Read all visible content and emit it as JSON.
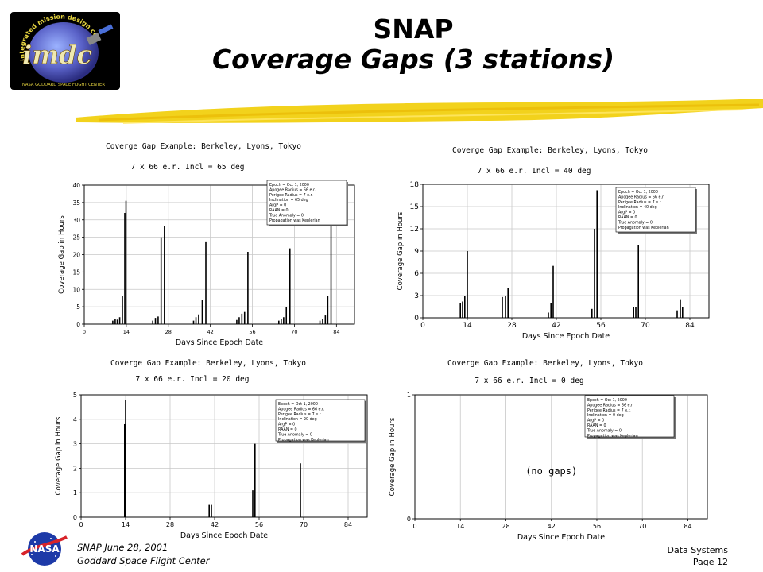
{
  "header": {
    "title_line1": "SNAP",
    "title_line2": "Coverage Gaps (3 stations)"
  },
  "logo": {
    "text": "imdc",
    "ring_text": "integrated mission design center",
    "bottom_text": "NASA GODDARD SPACE FLIGHT CENTER"
  },
  "footer": {
    "left_line1": "SNAP June 28, 2001",
    "left_line2": "Goddard Space Flight Center",
    "right_line1": "Data Systems",
    "right_line2": "Page 12"
  },
  "nasa_logo": {
    "text": "NASA"
  },
  "colors": {
    "accent": "#f2d21c",
    "bars": "#000000",
    "grid": "#c8c8c8"
  },
  "chart_data": [
    {
      "type": "bar",
      "title": "Coverge Gap Example:  Berkeley, Lyons, Tokyo",
      "subtitle": "7 x 66 e.r.        Incl = 65 deg",
      "xlabel": "Days Since Epoch Date",
      "ylabel": "Coverage Gap in Hours",
      "xlim": [
        0,
        90
      ],
      "ylim": [
        0,
        40
      ],
      "xticks": [
        "0",
        "14",
        "28",
        "42",
        "56",
        "70",
        "84"
      ],
      "yticks": [
        "0",
        "5",
        "10",
        "15",
        "20",
        "25",
        "30",
        "35",
        "40"
      ],
      "legend_position": "top-right",
      "legend": [
        "Epoch = Oct 1, 2000",
        "Apogee Radius = 66 e.r.",
        "Perigee Radius = 7 e.r.",
        "Inclination = 65 deg",
        "ArgP = 0",
        "RAAN = 0",
        "True Anomaly = 0",
        "Propagation was Keplerian"
      ],
      "x": [
        9.5,
        10.3,
        11,
        11.8,
        12.7,
        13.5,
        13.9,
        22.8,
        23.7,
        24.6,
        25.6,
        26.7,
        36.4,
        37.2,
        38.1,
        39.3,
        40.5,
        50.8,
        51.6,
        52.5,
        53.4,
        54.5,
        64.8,
        65.6,
        66.4,
        67.3,
        68.5,
        78.5,
        79.4,
        80.3,
        81.1,
        82.2
      ],
      "values": [
        1.0,
        1.5,
        1.3,
        2.0,
        8.0,
        32.0,
        35.5,
        1.0,
        1.8,
        2.2,
        25.0,
        28.3,
        1.0,
        2.0,
        2.8,
        7.0,
        23.8,
        1.2,
        2.0,
        3.0,
        3.5,
        20.8,
        1.0,
        1.5,
        2.0,
        5.0,
        21.8,
        1.0,
        1.5,
        2.5,
        8.0,
        31.0
      ],
      "annotation": ""
    },
    {
      "type": "bar",
      "title": "Coverge Gap Example:  Berkeley, Lyons, Tokyo",
      "subtitle": "7 x 66 e.r.        Incl = 40 deg",
      "xlabel": "Days Since Epoch Date",
      "ylabel": "Coverage Gap in Hours",
      "xlim": [
        0,
        90
      ],
      "ylim": [
        0,
        18
      ],
      "xticks": [
        "0",
        "14",
        "28",
        "42",
        "56",
        "70",
        "84"
      ],
      "yticks": [
        "0",
        "3",
        "6",
        "9",
        "12",
        "15",
        "18"
      ],
      "legend_position": "top-right",
      "legend": [
        "Epoch = Oct 1, 2000",
        "Apogee Radius = 66 e.r.",
        "Perigee Radius = 7 e.r.",
        "Inclination = 40 deg",
        "ArgP = 0",
        "RAAN = 0",
        "True Anomaly = 0",
        "Propagation was Keplerian"
      ],
      "x": [
        11.8,
        12.5,
        13.2,
        14.0,
        25.0,
        26.0,
        26.8,
        39.5,
        40.3,
        41.0,
        53.2,
        54.0,
        54.8,
        66.3,
        67.0,
        67.8,
        80.0,
        81.0,
        81.7
      ],
      "values": [
        2.0,
        2.2,
        3.0,
        9.0,
        2.8,
        3.0,
        4.0,
        0.7,
        2.0,
        7.0,
        1.2,
        12.0,
        17.2,
        1.5,
        1.5,
        9.8,
        1.0,
        2.5,
        1.5
      ],
      "annotation": ""
    },
    {
      "type": "bar",
      "title": "Coverge Gap Example:  Berkeley, Lyons, Tokyo",
      "subtitle": "7 x 66 e.r.        Incl = 20 deg",
      "xlabel": "Days Since Epoch Date",
      "ylabel": "Coverage Gap in Hours",
      "xlim": [
        0,
        90
      ],
      "ylim": [
        0,
        5
      ],
      "xticks": [
        "0",
        "14",
        "28",
        "42",
        "56",
        "70",
        "84"
      ],
      "yticks": [
        "0",
        "1",
        "2",
        "3",
        "4",
        "5"
      ],
      "legend_position": "top-right",
      "legend": [
        "Epoch = Oct 1, 2000",
        "Apogee Radius = 66 e.r.",
        "Perigee Radius = 7 e.r.",
        "Inclination = 20 deg",
        "ArgP = 0",
        "RAAN = 0",
        "True Anomaly = 0",
        "Propagation was Keplerian"
      ],
      "x": [
        13.7,
        14.0,
        40.3,
        41.0,
        54.0,
        54.7,
        69.0
      ],
      "values": [
        3.8,
        4.8,
        0.5,
        0.5,
        1.1,
        3.0,
        2.2
      ],
      "annotation": ""
    },
    {
      "type": "bar",
      "title": "Coverge Gap Example:  Berkeley, Lyons, Tokyo",
      "subtitle": "7 x 66 e.r.        Incl = 0 deg",
      "xlabel": "Days Since Epoch Date",
      "ylabel": "Coverage Gap in Hours",
      "xlim": [
        0,
        90
      ],
      "ylim": [
        0,
        1
      ],
      "xticks": [
        "0",
        "14",
        "28",
        "42",
        "56",
        "70",
        "84"
      ],
      "yticks": [
        "0",
        "1"
      ],
      "legend_position": "top-right",
      "legend": [
        "Epoch = Oct 1, 2000",
        "Apogee Radius = 66 e.r.",
        "Perigee Radius = 7 e.r.",
        "Inclination = 0 deg",
        "ArgP = 0",
        "RAAN = 0",
        "True Anomaly = 0",
        "Propagation was Keplerian"
      ],
      "x": [],
      "values": [],
      "annotation": "(no gaps)"
    }
  ]
}
